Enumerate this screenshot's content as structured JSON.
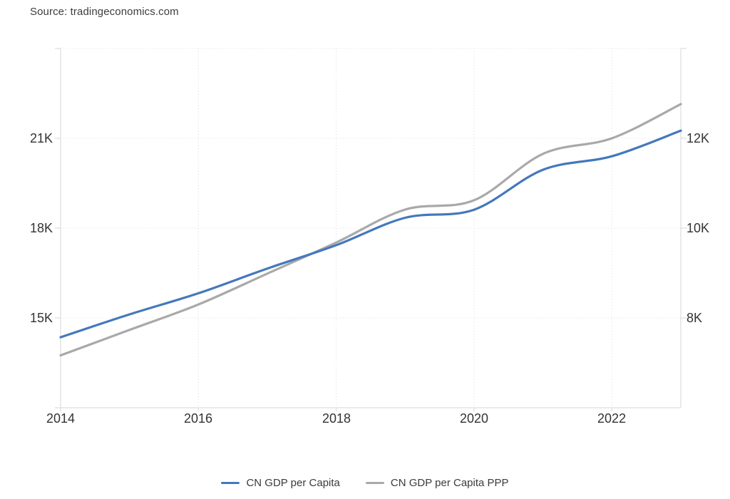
{
  "source": {
    "text": "Source: tradingeconomics.com"
  },
  "colors": {
    "series_gdp": "#4478bb",
    "series_ppp": "#a9a9a9",
    "grid": "#dddddd",
    "axis_border": "#e3e3e3",
    "label_text": "#333333"
  },
  "chart_data": {
    "type": "line",
    "title": "",
    "x": [
      2014,
      2015,
      2016,
      2017,
      2018,
      2019,
      2020,
      2021,
      2022,
      2023
    ],
    "series": [
      {
        "name": "CN GDP per Capita",
        "axis": "right",
        "color": "#4478bb",
        "values": [
          7570,
          8080,
          8550,
          9100,
          9620,
          10230,
          10410,
          11300,
          11600,
          12170
        ]
      },
      {
        "name": "CN GDP per Capita PPP",
        "axis": "left",
        "color": "#a9a9a9",
        "values": [
          13750,
          14600,
          15450,
          16480,
          17520,
          18620,
          18930,
          20480,
          21000,
          22140
        ]
      }
    ],
    "axes": {
      "left": {
        "ticks": [
          "21K",
          "18K",
          "15K"
        ],
        "tick_values": [
          21000,
          18000,
          15000
        ],
        "range": [
          12000,
          24000
        ]
      },
      "right": {
        "ticks": [
          "12K",
          "10K",
          "8K"
        ],
        "tick_values": [
          12000,
          10000,
          8000
        ],
        "range": [
          6000,
          14000
        ]
      },
      "x": {
        "ticks": [
          "2014",
          "2016",
          "2018",
          "2020",
          "2022"
        ],
        "tick_values": [
          2014,
          2016,
          2018,
          2020,
          2022
        ],
        "range": [
          2014,
          2023
        ]
      }
    },
    "grid": true,
    "legend_position": "bottom",
    "curve": "smooth"
  }
}
